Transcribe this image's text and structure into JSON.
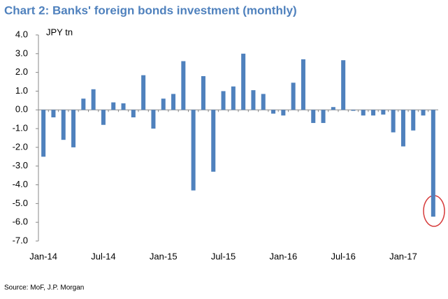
{
  "chart_data": {
    "type": "bar",
    "title": "Chart 2: Banks' foreign bonds investment (monthly)",
    "unit_label": "JPY tn",
    "source": "Source: MoF, J.P. Morgan",
    "categories": [
      "Jan-14",
      null,
      null,
      null,
      null,
      null,
      "Jul-14",
      null,
      null,
      null,
      null,
      null,
      "Jan-15",
      null,
      null,
      null,
      null,
      null,
      "Jul-15",
      null,
      null,
      null,
      null,
      null,
      "Jan-16",
      null,
      null,
      null,
      null,
      null,
      "Jul-16",
      null,
      null,
      null,
      null,
      null,
      "Jan-17",
      null,
      null,
      null
    ],
    "values": [
      -2.5,
      -0.4,
      -1.6,
      -2.0,
      0.6,
      1.1,
      -0.8,
      0.4,
      0.35,
      -0.4,
      1.85,
      -1.0,
      0.6,
      0.85,
      2.6,
      -4.3,
      1.8,
      -3.3,
      1.0,
      1.25,
      3.0,
      1.05,
      0.85,
      -0.2,
      -0.3,
      1.45,
      2.7,
      -0.7,
      -0.7,
      0.15,
      2.65,
      -0.05,
      -0.3,
      -0.3,
      -0.25,
      -1.2,
      -1.95,
      -1.1,
      -0.3,
      -5.7
    ],
    "color": "#4f81bd",
    "ylim": [
      -7,
      4
    ],
    "yticks": [
      {
        "value": 4,
        "label": "4.0"
      },
      {
        "value": 3,
        "label": "3.0"
      },
      {
        "value": 2,
        "label": "2.0"
      },
      {
        "value": 1,
        "label": "1.0"
      },
      {
        "value": 0,
        "label": "0.0"
      },
      {
        "value": -1,
        "label": "-1.0"
      },
      {
        "value": -2,
        "label": "-2.0"
      },
      {
        "value": -3,
        "label": "-3.0"
      },
      {
        "value": -4,
        "label": "-4.0"
      },
      {
        "value": -5,
        "label": "-5.0"
      },
      {
        "value": -6,
        "label": "-6.0"
      },
      {
        "value": -7,
        "label": "-7.0"
      }
    ],
    "grid": false
  }
}
